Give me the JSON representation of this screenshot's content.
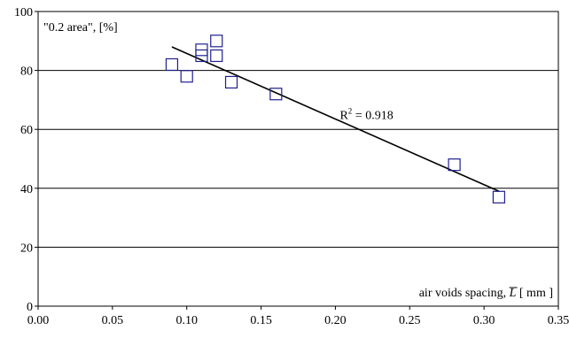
{
  "chart_data": {
    "type": "scatter",
    "title": "",
    "ylabel": "\"0.2 area\",  [%]",
    "xlabel_prefix": "air voids spacing, ",
    "xlabel_symbol": "L",
    "xlabel_suffix": "  [ mm ]",
    "xlim": [
      0,
      0.35
    ],
    "ylim": [
      0,
      100
    ],
    "x_ticks": [
      "0.00",
      "0.05",
      "0.10",
      "0.15",
      "0.20",
      "0.25",
      "0.30",
      "0.35"
    ],
    "y_ticks": [
      "0",
      "20",
      "40",
      "60",
      "80",
      "100"
    ],
    "grid": "horizontal",
    "series": [
      {
        "marker": "open-square",
        "points": [
          {
            "x": 0.09,
            "y": 82
          },
          {
            "x": 0.1,
            "y": 78
          },
          {
            "x": 0.11,
            "y": 87
          },
          {
            "x": 0.11,
            "y": 85
          },
          {
            "x": 0.12,
            "y": 90
          },
          {
            "x": 0.12,
            "y": 85
          },
          {
            "x": 0.13,
            "y": 76
          },
          {
            "x": 0.16,
            "y": 72
          },
          {
            "x": 0.28,
            "y": 48
          },
          {
            "x": 0.31,
            "y": 37
          }
        ]
      }
    ],
    "trendline": {
      "x": [
        0.09,
        0.31
      ],
      "y": [
        88,
        39
      ]
    },
    "r2_prefix": "R",
    "r2_power": "2",
    "r2_value": " = 0.918",
    "colors": {
      "marker": "#1f1f8f",
      "line": "#000000",
      "grid": "#000000"
    }
  }
}
